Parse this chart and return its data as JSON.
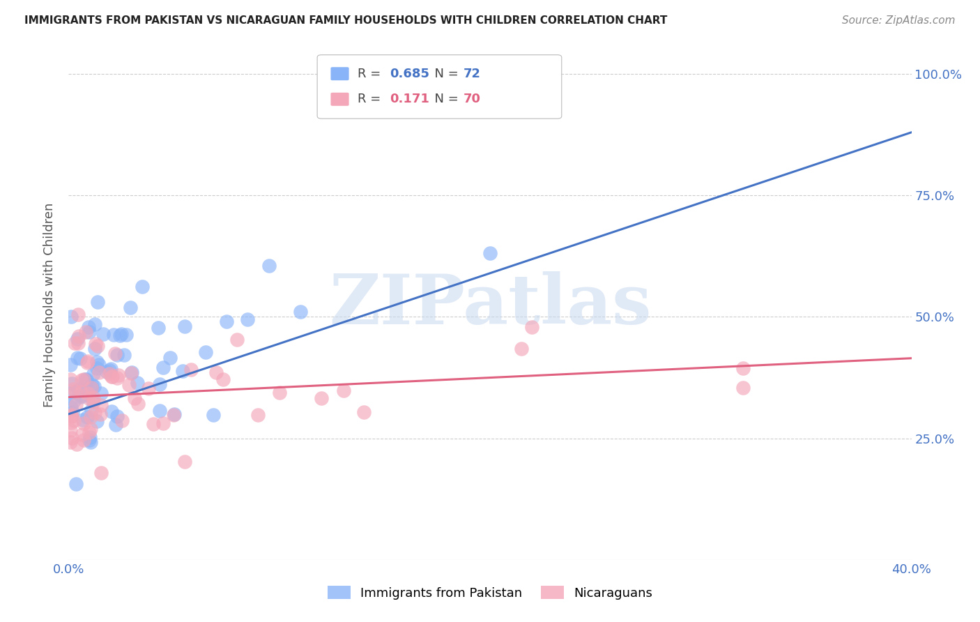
{
  "title": "IMMIGRANTS FROM PAKISTAN VS NICARAGUAN FAMILY HOUSEHOLDS WITH CHILDREN CORRELATION CHART",
  "source": "Source: ZipAtlas.com",
  "ylabel": "Family Households with Children",
  "legend_blue_r": "0.685",
  "legend_blue_n": "72",
  "legend_pink_r": "0.171",
  "legend_pink_n": "70",
  "legend_label_blue": "Immigrants from Pakistan",
  "legend_label_pink": "Nicaraguans",
  "blue_color": "#8AB4F8",
  "pink_color": "#F4A7B9",
  "blue_line_color": "#4472C4",
  "pink_line_color": "#E06080",
  "watermark": "ZIPatlas",
  "xlim": [
    0.0,
    0.4
  ],
  "ylim": [
    0.0,
    1.05
  ],
  "blue_line_x0": 0.0,
  "blue_line_x1": 0.4,
  "blue_line_y0": 0.3,
  "blue_line_y1": 0.88,
  "pink_line_x0": 0.0,
  "pink_line_x1": 0.4,
  "pink_line_y0": 0.335,
  "pink_line_y1": 0.415,
  "background_color": "#ffffff",
  "grid_color": "#cccccc",
  "ytick_positions": [
    0.25,
    0.5,
    0.75,
    1.0
  ],
  "ytick_labels": [
    "25.0%",
    "50.0%",
    "75.0%",
    "100.0%"
  ],
  "xtick_positions": [
    0.0,
    0.1,
    0.2,
    0.3,
    0.4
  ],
  "xtick_labels_visible": [
    "0.0%",
    "",
    "",
    "",
    "40.0%"
  ]
}
